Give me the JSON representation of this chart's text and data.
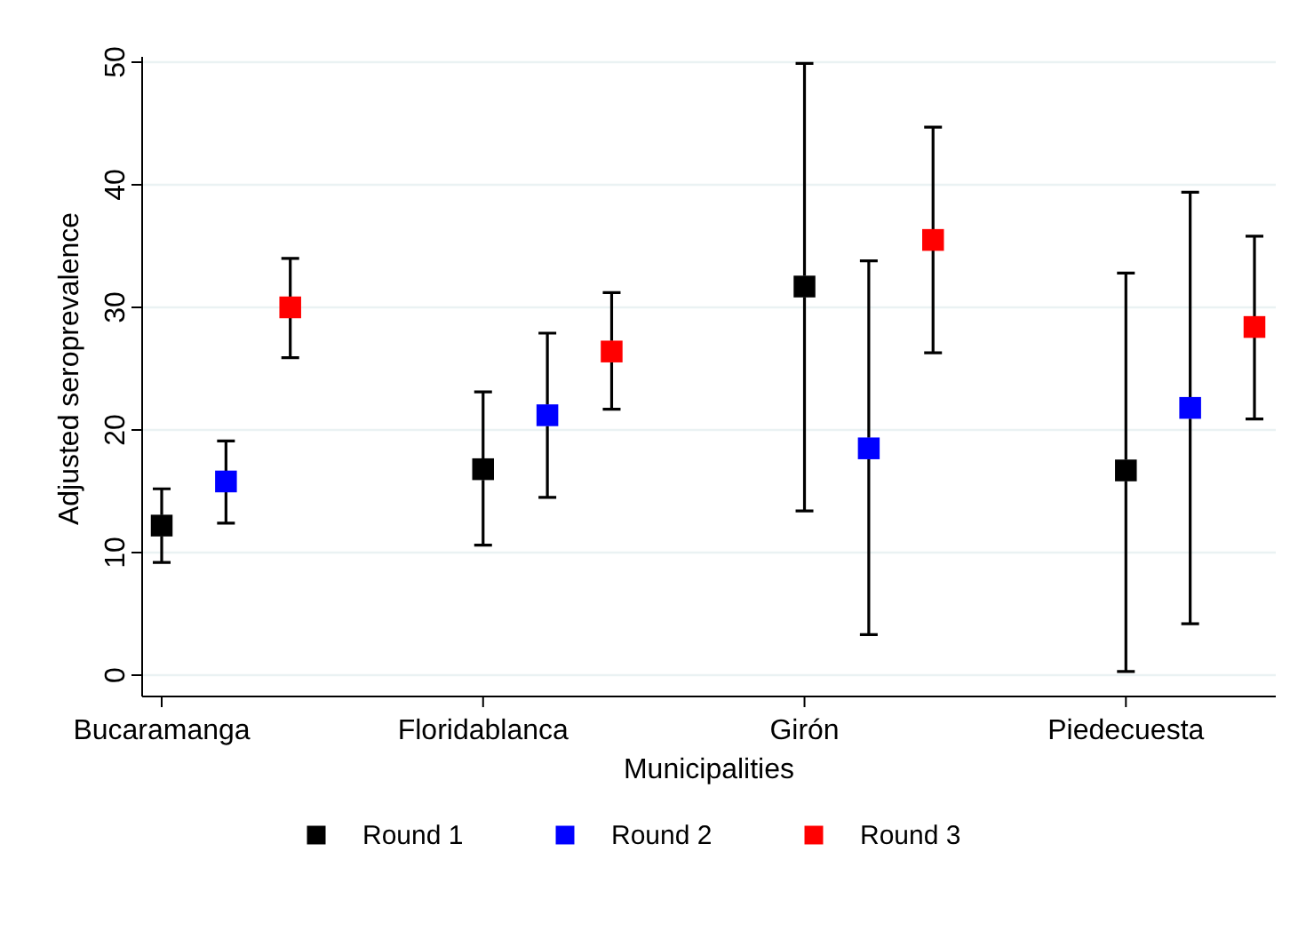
{
  "chart_data": {
    "type": "scatter",
    "xlabel": "Municipalities",
    "ylabel": "Adjusted seroprevalence",
    "categories": [
      "Bucaramanga",
      null,
      null,
      null,
      null,
      "Floridablanca",
      null,
      null,
      null,
      null,
      "Girón",
      null,
      null,
      null,
      null,
      "Piedecuesta",
      null,
      null
    ],
    "series": [
      {
        "name": "Round 1",
        "color": "#000000",
        "values": [
          12.2,
          null,
          null,
          null,
          null,
          16.8,
          null,
          null,
          null,
          null,
          31.7,
          null,
          null,
          null,
          null,
          16.7,
          null,
          null
        ],
        "errors": [
          [
            9.2,
            15.2
          ],
          null,
          null,
          null,
          null,
          [
            10.6,
            23.1
          ],
          null,
          null,
          null,
          null,
          [
            13.4,
            49.9
          ],
          null,
          null,
          null,
          null,
          [
            0.3,
            32.8
          ],
          null,
          null
        ]
      },
      {
        "name": "Round 2",
        "color": "#0000ff",
        "values": [
          null,
          15.8,
          null,
          null,
          null,
          null,
          21.2,
          null,
          null,
          null,
          null,
          18.5,
          null,
          null,
          null,
          null,
          21.8,
          null
        ],
        "errors": [
          null,
          [
            12.4,
            19.1
          ],
          null,
          null,
          null,
          null,
          [
            14.5,
            27.9
          ],
          null,
          null,
          null,
          null,
          [
            3.3,
            33.8
          ],
          null,
          null,
          null,
          null,
          [
            4.2,
            39.4
          ],
          null
        ]
      },
      {
        "name": "Round 3",
        "color": "#ff0000",
        "values": [
          null,
          null,
          30.0,
          null,
          null,
          null,
          null,
          26.4,
          null,
          null,
          null,
          null,
          35.5,
          null,
          null,
          null,
          null,
          28.4
        ],
        "errors": [
          null,
          null,
          [
            25.9,
            34.0
          ],
          null,
          null,
          null,
          null,
          [
            21.7,
            31.2
          ],
          null,
          null,
          null,
          null,
          [
            26.3,
            44.7
          ],
          null,
          null,
          null,
          null,
          [
            20.9,
            35.8
          ]
        ]
      }
    ],
    "ylim": [
      0,
      50
    ],
    "yticks": [
      0,
      10,
      20,
      30,
      40,
      50
    ],
    "grid": "y",
    "legend": "bottom",
    "marker": "square"
  }
}
